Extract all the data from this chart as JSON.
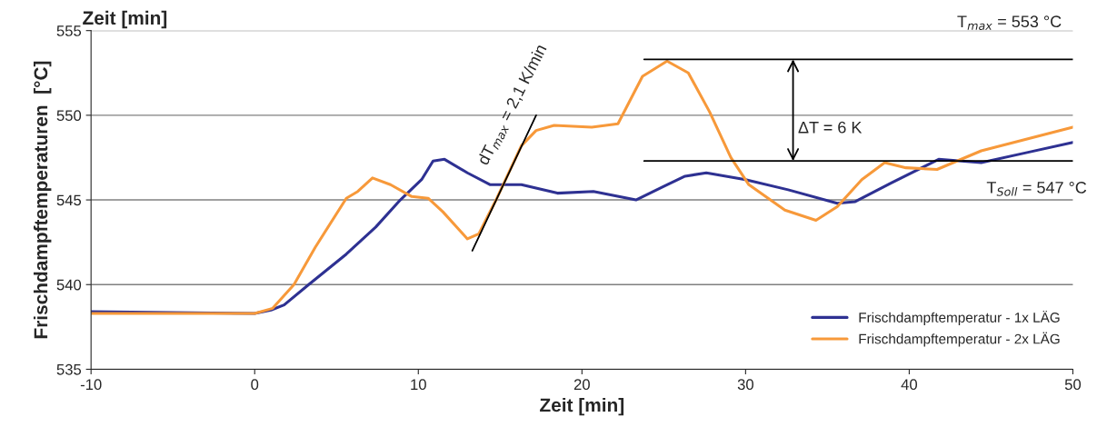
{
  "chart_data": {
    "type": "line",
    "xlabel": "Zeit [min]",
    "ylabel": "Frischdampftemperaturen  [°C]",
    "xlim": [
      -10,
      50
    ],
    "ylim": [
      535,
      555
    ],
    "xticks": [
      -10,
      0,
      10,
      20,
      30,
      40,
      50
    ],
    "yticks": [
      535,
      540,
      545,
      550,
      555
    ],
    "grid": "y",
    "legend": "bottom right",
    "line_style": "solid",
    "marker": "none",
    "series": [
      {
        "name": "Frischdampftemperatur - 1x LÄG",
        "color": "#2e3192",
        "x": [
          -10,
          0,
          1,
          1.8,
          3.3,
          5.6,
          7.4,
          8.9,
          10.2,
          10.9,
          11.6,
          13.0,
          14.4,
          16.3,
          18.5,
          20.7,
          23.3,
          25.0,
          26.3,
          27.6,
          30,
          32.6,
          35.6,
          36.7,
          38.9,
          41.8,
          44.4,
          47.2,
          50
        ],
        "values": [
          538.4,
          538.3,
          538.5,
          538.8,
          540.0,
          541.8,
          543.4,
          545.0,
          546.2,
          547.3,
          547.4,
          546.6,
          545.9,
          545.9,
          545.4,
          545.5,
          545.0,
          545.8,
          546.4,
          546.6,
          546.2,
          545.6,
          544.8,
          544.9,
          546.0,
          547.4,
          547.2,
          547.8,
          548.4
        ]
      },
      {
        "name": "Frischdampftemperatur - 2x LÄG",
        "color": "#f7993a",
        "x": [
          -10,
          0,
          1.1,
          2.4,
          3.7,
          5.6,
          6.3,
          7.2,
          8.3,
          9.6,
          10.6,
          11.5,
          13.0,
          13.7,
          14.8,
          16.3,
          17.2,
          18.3,
          20.6,
          22.2,
          23.7,
          25.2,
          26.5,
          27.8,
          29.1,
          30.2,
          32.4,
          34.3,
          35.6,
          37.1,
          38.5,
          39.8,
          41.7,
          44.4,
          47.2,
          50
        ],
        "values": [
          538.3,
          538.3,
          538.6,
          540.0,
          542.2,
          545.1,
          545.5,
          546.3,
          545.9,
          545.2,
          545.1,
          544.3,
          542.7,
          543.0,
          545.1,
          548.2,
          549.1,
          549.4,
          549.3,
          549.5,
          552.3,
          553.2,
          552.5,
          550.2,
          547.5,
          545.9,
          544.4,
          543.8,
          544.6,
          546.2,
          547.2,
          546.9,
          546.8,
          547.9,
          548.6,
          549.3
        ]
      },
      {
        "color": "#000000",
        "x": [
          23.8,
          50
        ],
        "values": [
          553.3,
          553.3
        ]
      },
      {
        "color": "#000000",
        "x": [
          23.8,
          50
        ],
        "values": [
          547.3,
          547.3
        ]
      },
      {
        "color": "#000000",
        "x": [
          13.3,
          17.2
        ],
        "values": [
          542.0,
          550.0
        ]
      }
    ],
    "annotations": [
      "T$_{max}$ = 553 °C",
      "T$_{Soll}$ = 547 °C",
      "ΔT = 6 K",
      "dT$_{max}$ = 2,1 K/min",
      "Zeit [min]"
    ]
  }
}
